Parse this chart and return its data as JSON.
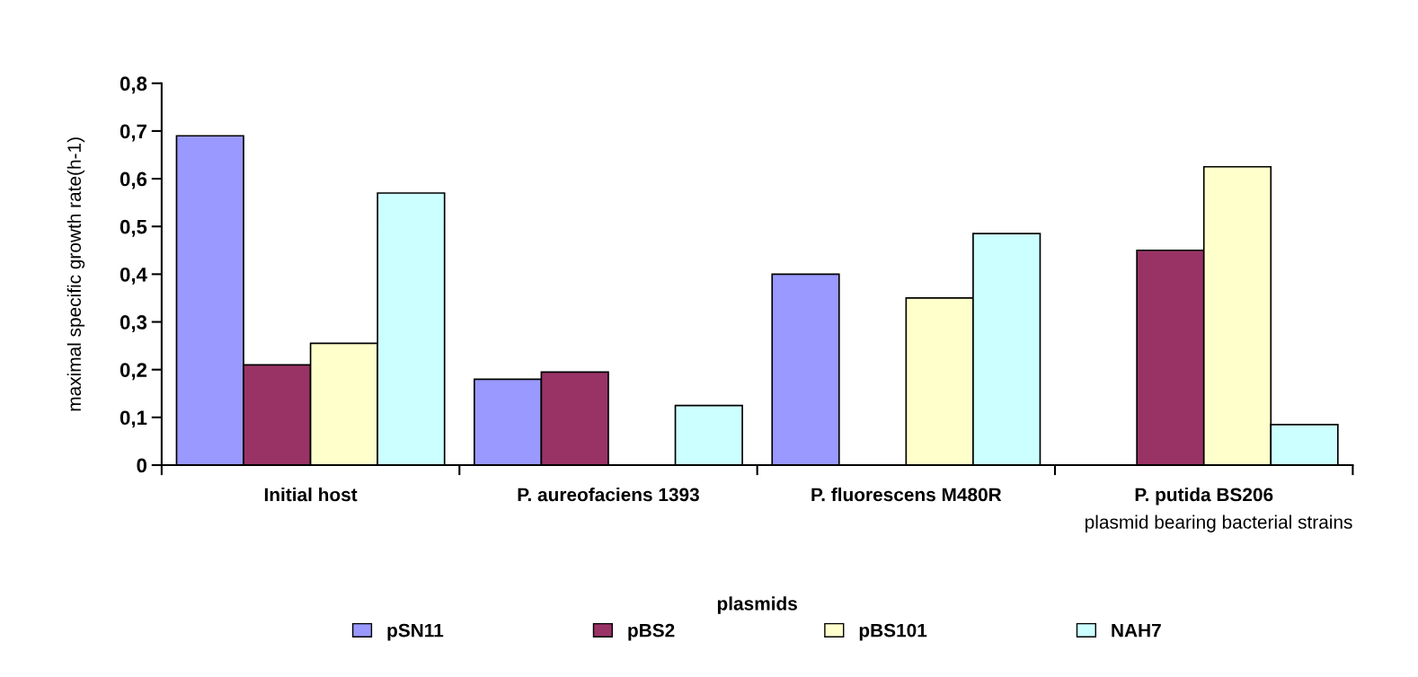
{
  "chart_data": {
    "type": "bar",
    "xlabel": "plasmid bearing bacterial strains",
    "ylabel": "maximal specific growth rate(h-1)",
    "legend_title": "plasmids",
    "categories": [
      "Initial host",
      "P. aureofaciens 1393",
      "P. fluorescens M480R",
      "P. putida BS206"
    ],
    "series": [
      {
        "name": "pSN11",
        "color": "#9999ff",
        "values": [
          0.69,
          0.18,
          0.4,
          null
        ]
      },
      {
        "name": "pBS2",
        "color": "#993366",
        "values": [
          0.21,
          0.195,
          null,
          0.45
        ]
      },
      {
        "name": "pBS101",
        "color": "#ffffcc",
        "values": [
          0.255,
          null,
          0.35,
          0.625
        ]
      },
      {
        "name": "NAH7",
        "color": "#ccffff",
        "values": [
          0.57,
          0.125,
          0.485,
          0.085
        ]
      }
    ],
    "ylim": [
      0,
      0.8
    ],
    "yticks": [
      {
        "value": 0,
        "label": "0"
      },
      {
        "value": 0.1,
        "label": "0,1"
      },
      {
        "value": 0.2,
        "label": "0,2"
      },
      {
        "value": 0.3,
        "label": "0,3"
      },
      {
        "value": 0.4,
        "label": "0,4"
      },
      {
        "value": 0.5,
        "label": "0,5"
      },
      {
        "value": 0.6,
        "label": "0,6"
      },
      {
        "value": 0.7,
        "label": "0,7"
      },
      {
        "value": 0.8,
        "label": "0,8"
      }
    ],
    "grid": false,
    "legend": "bottom"
  }
}
